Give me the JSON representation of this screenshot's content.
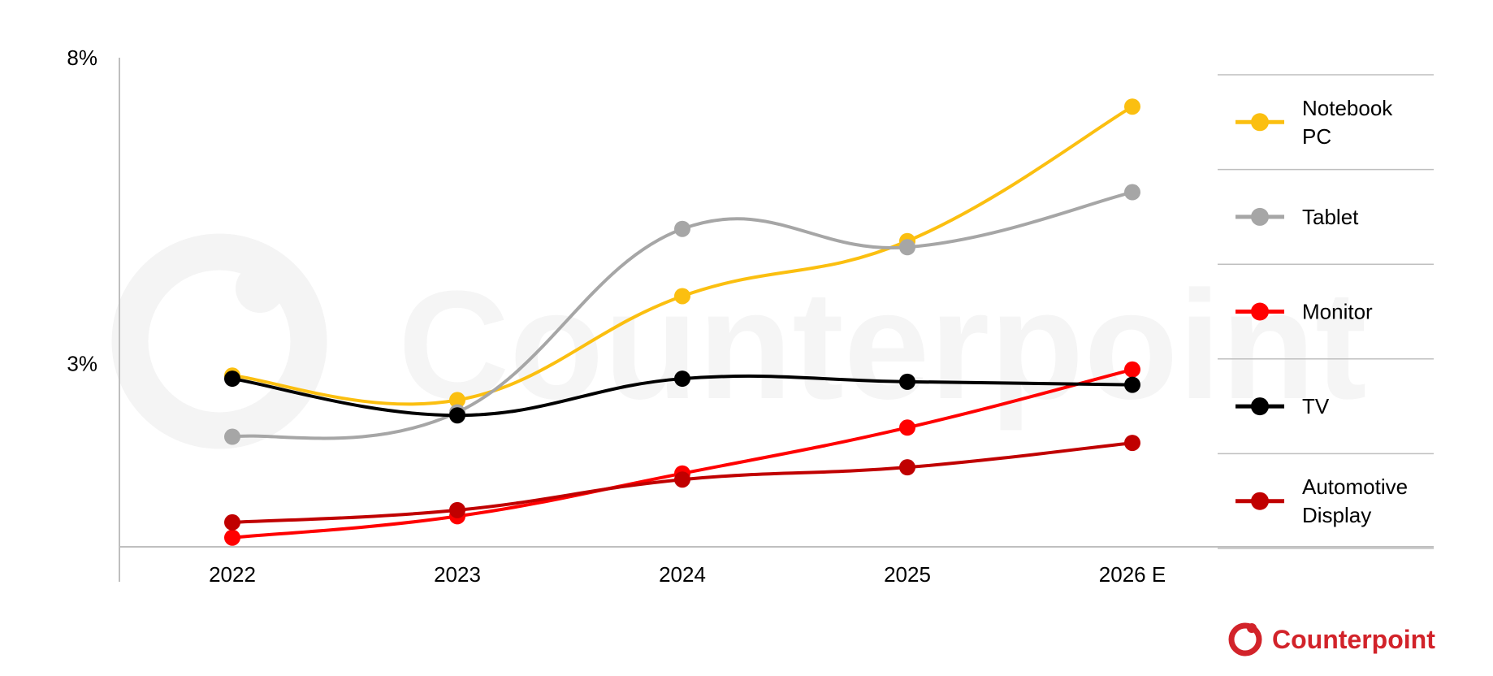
{
  "chart_data": {
    "type": "line",
    "categories": [
      "2022",
      "2023",
      "2024",
      "2025",
      "2026 E"
    ],
    "y_ticks": [
      {
        "value": 8,
        "label": "8%"
      },
      {
        "value": 3,
        "label": "3%"
      }
    ],
    "ylim": [
      0,
      8
    ],
    "grid": false,
    "legend_position": "right",
    "series": [
      {
        "name_lines": [
          "Notebook",
          "PC"
        ],
        "color": "#fbbf10",
        "values": [
          2.8,
          2.4,
          4.1,
          5.0,
          7.2
        ]
      },
      {
        "name_lines": [
          "Tablet"
        ],
        "color": "#a6a6a6",
        "values": [
          1.8,
          2.2,
          5.2,
          4.9,
          5.8
        ]
      },
      {
        "name_lines": [
          "Monitor"
        ],
        "color": "#ff0000",
        "values": [
          0.15,
          0.5,
          1.2,
          1.95,
          2.9
        ]
      },
      {
        "name_lines": [
          "TV"
        ],
        "color": "#000000",
        "values": [
          2.75,
          2.15,
          2.75,
          2.7,
          2.65
        ]
      },
      {
        "name_lines": [
          "Automotive",
          "Display"
        ],
        "color": "#c00000",
        "values": [
          0.4,
          0.6,
          1.1,
          1.3,
          1.7
        ]
      }
    ]
  },
  "brand": {
    "logo_text": "Counterpoint",
    "color": "#d2232a",
    "watermark_text": "Counterpoint"
  }
}
